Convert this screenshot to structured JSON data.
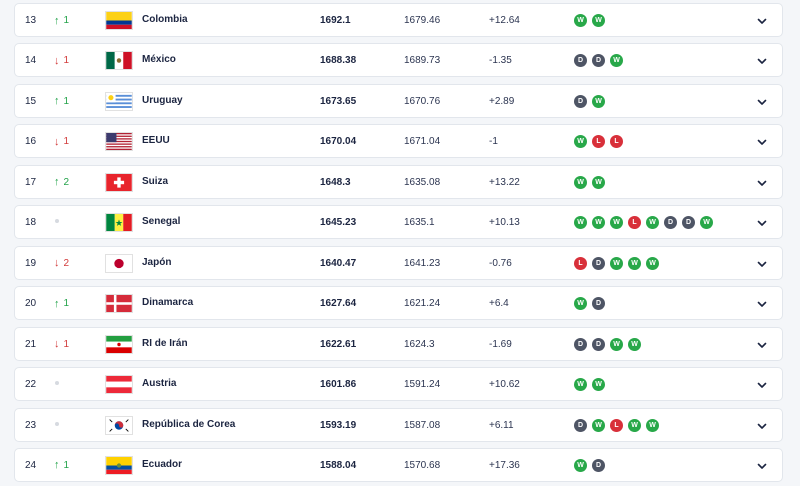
{
  "colors": {
    "win": "#28a849",
    "draw": "#4e5565",
    "loss": "#d8303a",
    "up": "#23a34a",
    "down": "#d23b3b"
  },
  "rows": [
    {
      "rank": "13",
      "move_dir": "up",
      "move": "1",
      "name": "Colombia",
      "flag": "colombia",
      "points": "1692.1",
      "previous": "1679.46",
      "diff": "+12.64",
      "results": [
        "W",
        "W"
      ]
    },
    {
      "rank": "14",
      "move_dir": "down",
      "move": "1",
      "name": "México",
      "flag": "mexico",
      "points": "1688.38",
      "previous": "1689.73",
      "diff": "-1.35",
      "results": [
        "D",
        "D",
        "W"
      ]
    },
    {
      "rank": "15",
      "move_dir": "up",
      "move": "1",
      "name": "Uruguay",
      "flag": "uruguay",
      "points": "1673.65",
      "previous": "1670.76",
      "diff": "+2.89",
      "results": [
        "D",
        "W"
      ]
    },
    {
      "rank": "16",
      "move_dir": "down",
      "move": "1",
      "name": "EEUU",
      "flag": "usa",
      "points": "1670.04",
      "previous": "1671.04",
      "diff": "-1",
      "results": [
        "W",
        "L",
        "L"
      ]
    },
    {
      "rank": "17",
      "move_dir": "up",
      "move": "2",
      "name": "Suiza",
      "flag": "switzerland",
      "points": "1648.3",
      "previous": "1635.08",
      "diff": "+13.22",
      "results": [
        "W",
        "W"
      ]
    },
    {
      "rank": "18",
      "move_dir": "same",
      "move": "",
      "name": "Senegal",
      "flag": "senegal",
      "points": "1645.23",
      "previous": "1635.1",
      "diff": "+10.13",
      "results": [
        "W",
        "W",
        "W",
        "L",
        "W",
        "D",
        "D",
        "W"
      ]
    },
    {
      "rank": "19",
      "move_dir": "down",
      "move": "2",
      "name": "Japón",
      "flag": "japan",
      "points": "1640.47",
      "previous": "1641.23",
      "diff": "-0.76",
      "results": [
        "L",
        "D",
        "W",
        "W",
        "W"
      ]
    },
    {
      "rank": "20",
      "move_dir": "up",
      "move": "1",
      "name": "Dinamarca",
      "flag": "denmark",
      "points": "1627.64",
      "previous": "1621.24",
      "diff": "+6.4",
      "results": [
        "W",
        "D"
      ]
    },
    {
      "rank": "21",
      "move_dir": "down",
      "move": "1",
      "name": "RI de Irán",
      "flag": "iran",
      "points": "1622.61",
      "previous": "1624.3",
      "diff": "-1.69",
      "results": [
        "D",
        "D",
        "W",
        "W"
      ]
    },
    {
      "rank": "22",
      "move_dir": "same",
      "move": "",
      "name": "Austria",
      "flag": "austria",
      "points": "1601.86",
      "previous": "1591.24",
      "diff": "+10.62",
      "results": [
        "W",
        "W"
      ]
    },
    {
      "rank": "23",
      "move_dir": "same",
      "move": "",
      "name": "República de Corea",
      "flag": "korea",
      "points": "1593.19",
      "previous": "1587.08",
      "diff": "+6.11",
      "results": [
        "D",
        "W",
        "L",
        "W",
        "W"
      ]
    },
    {
      "rank": "24",
      "move_dir": "up",
      "move": "1",
      "name": "Ecuador",
      "flag": "ecuador",
      "points": "1588.04",
      "previous": "1570.68",
      "diff": "+17.36",
      "results": [
        "W",
        "D"
      ]
    }
  ]
}
